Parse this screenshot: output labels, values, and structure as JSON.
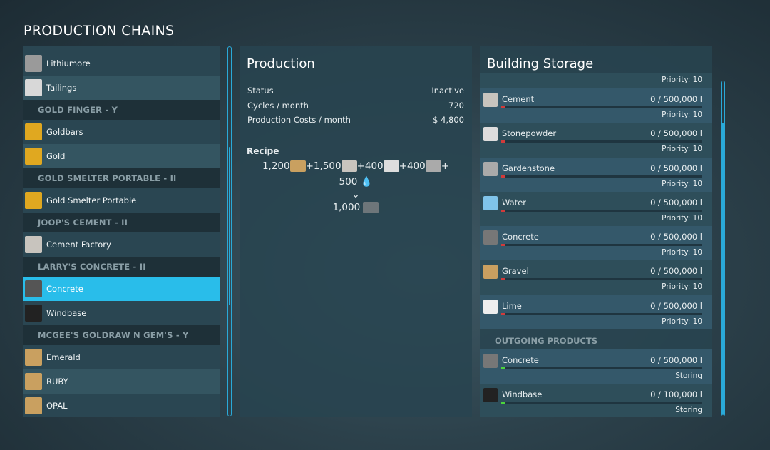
{
  "title": "PRODUCTION CHAINS",
  "chains": [
    {
      "type": "item",
      "label": "Lithiumore",
      "icon": "lithiumore-icon",
      "color": "#9a9a9a"
    },
    {
      "type": "item",
      "label": "Tailings",
      "icon": "tailings-icon",
      "color": "#d8d8d8"
    },
    {
      "type": "header",
      "label": "GOLD FINGER   -  Y"
    },
    {
      "type": "item",
      "label": "Goldbars",
      "icon": "goldbars-icon",
      "color": "#e0a820"
    },
    {
      "type": "item",
      "label": "Gold",
      "icon": "gold-icon",
      "color": "#e0a820"
    },
    {
      "type": "header",
      "label": "GOLD SMELTER PORTABLE   -  II"
    },
    {
      "type": "item",
      "label": "Gold Smelter Portable",
      "icon": "gold-smelter-icon",
      "color": "#e0a820"
    },
    {
      "type": "header",
      "label": "JOOP'S CEMENT   -  II"
    },
    {
      "type": "item",
      "label": "Cement Factory",
      "icon": "cement-icon",
      "color": "#c8c4be"
    },
    {
      "type": "header",
      "label": "LARRY'S CONCRETE   -  II"
    },
    {
      "type": "item",
      "label": "Concrete",
      "icon": "concrete-icon",
      "color": "#555",
      "selected": true
    },
    {
      "type": "item",
      "label": "Windbase",
      "icon": "windbase-icon",
      "color": "#222"
    },
    {
      "type": "header",
      "label": "MCGEE'S GOLDRAW N GEM'S   -  Y"
    },
    {
      "type": "item",
      "label": "Emerald",
      "icon": "emerald-icon",
      "color": "#c9a060"
    },
    {
      "type": "item",
      "label": "RUBY",
      "icon": "ruby-icon",
      "color": "#c9a060"
    },
    {
      "type": "item",
      "label": "OPAL",
      "icon": "opal-icon",
      "color": "#c9a060"
    }
  ],
  "production": {
    "title": "Production",
    "stats": [
      {
        "label": "Status",
        "value": "Inactive"
      },
      {
        "label": "Cycles / month",
        "value": "720"
      },
      {
        "label": "Production Costs / month",
        "value": "$ 4,800"
      }
    ],
    "recipe_label": "Recipe",
    "inputs": [
      {
        "amount": "1,200",
        "icon": "gravel-icon",
        "color": "#c9a060"
      },
      {
        "amount": "1,500",
        "icon": "cement-icon",
        "color": "#c8c4be"
      },
      {
        "amount": "400",
        "icon": "stonepowder-icon",
        "color": "#ddd"
      },
      {
        "amount": "400",
        "icon": "gardenstone-icon",
        "color": "#aaa"
      }
    ],
    "water_amount": "500",
    "output_amount": "1,000",
    "plus": "+"
  },
  "storage": {
    "title": "Building Storage",
    "top_partial": "Priority: 10",
    "incoming": [
      {
        "name": "Cement",
        "amount": "0  / 500,000 l",
        "priority": "Priority: 10",
        "icon": "cement-icon",
        "color": "#c8c4be"
      },
      {
        "name": "Stonepowder",
        "amount": "0  / 500,000 l",
        "priority": "Priority: 10",
        "icon": "stonepowder-icon",
        "color": "#ddd"
      },
      {
        "name": "Gardenstone",
        "amount": "0  / 500,000 l",
        "priority": "Priority: 10",
        "icon": "gardenstone-icon",
        "color": "#aaa"
      },
      {
        "name": "Water",
        "amount": "0  / 500,000 l",
        "priority": "Priority: 10",
        "icon": "water-icon",
        "color": "#7fc4ea"
      },
      {
        "name": "Concrete",
        "amount": "0  / 500,000 l",
        "priority": "Priority: 10",
        "icon": "concrete-icon",
        "color": "#777"
      },
      {
        "name": "Gravel",
        "amount": "0  / 500,000 l",
        "priority": "Priority: 10",
        "icon": "gravel-icon",
        "color": "#c9a060"
      },
      {
        "name": "Lime",
        "amount": "0  / 500,000 l",
        "priority": "Priority: 10",
        "icon": "lime-icon",
        "color": "#eee"
      }
    ],
    "outgoing_label": "OUTGOING PRODUCTS",
    "outgoing": [
      {
        "name": "Concrete",
        "amount": "0  / 500,000 l",
        "priority": "Storing",
        "icon": "concrete-icon",
        "color": "#777"
      },
      {
        "name": "Windbase",
        "amount": "0  / 100,000 l",
        "priority": "Storing",
        "icon": "windbase-icon",
        "color": "#222"
      }
    ],
    "colors": {
      "incoming_fill": "#d23a3a",
      "outgoing_fill": "#4cd43c",
      "accent": "#29bdea"
    }
  }
}
